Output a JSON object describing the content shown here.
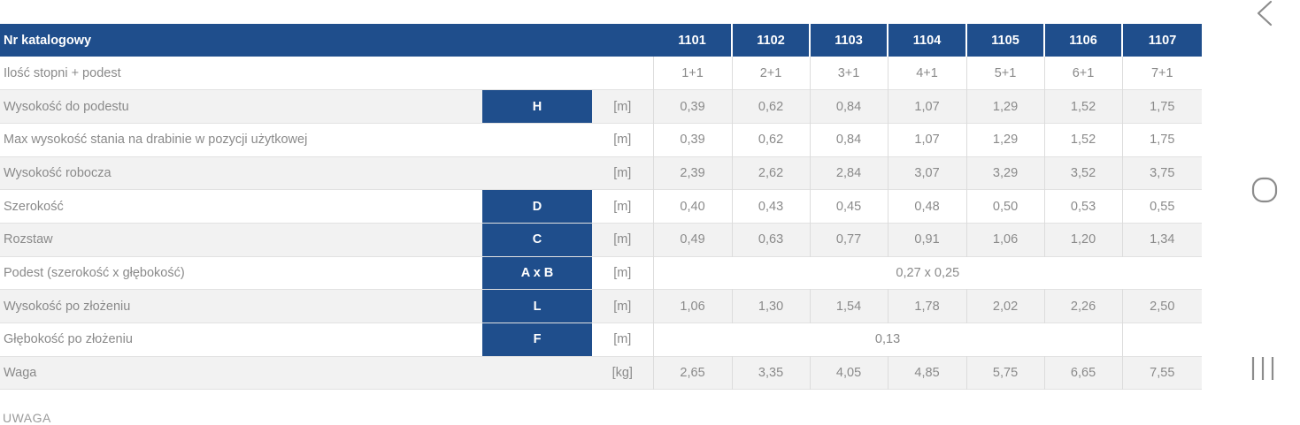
{
  "table": {
    "header": {
      "label": "Nr katalogowy",
      "models": [
        "1101",
        "1102",
        "1103",
        "1104",
        "1105",
        "1106",
        "1107"
      ]
    },
    "rows": [
      {
        "label": "Ilość stopni + podest",
        "symbol": "",
        "unit": "",
        "values": [
          "1+1",
          "2+1",
          "3+1",
          "4+1",
          "5+1",
          "6+1",
          "7+1"
        ]
      },
      {
        "label": "Wysokość do podestu",
        "symbol": "H",
        "unit": "[m]",
        "values": [
          "0,39",
          "0,62",
          "0,84",
          "1,07",
          "1,29",
          "1,52",
          "1,75"
        ]
      },
      {
        "label": "Max wysokość stania na drabinie w pozycji użytkowej",
        "symbol": "",
        "unit": "[m]",
        "values": [
          "0,39",
          "0,62",
          "0,84",
          "1,07",
          "1,29",
          "1,52",
          "1,75"
        ]
      },
      {
        "label": "Wysokość robocza",
        "symbol": "",
        "unit": "[m]",
        "values": [
          "2,39",
          "2,62",
          "2,84",
          "3,07",
          "3,29",
          "3,52",
          "3,75"
        ]
      },
      {
        "label": "Szerokość",
        "symbol": "D",
        "unit": "[m]",
        "values": [
          "0,40",
          "0,43",
          "0,45",
          "0,48",
          "0,50",
          "0,53",
          "0,55"
        ]
      },
      {
        "label": "Rozstaw",
        "symbol": "C",
        "unit": "[m]",
        "values": [
          "0,49",
          "0,63",
          "0,77",
          "0,91",
          "1,06",
          "1,20",
          "1,34"
        ]
      },
      {
        "label": "Podest (szerokość x głębokość)",
        "symbol": "A x B",
        "unit": "[m]",
        "span_value": "0,27 x 0,25"
      },
      {
        "label": "Wysokość po złożeniu",
        "symbol": "L",
        "unit": "[m]",
        "values": [
          "1,06",
          "1,30",
          "1,54",
          "1,78",
          "2,02",
          "2,26",
          "2,50"
        ]
      },
      {
        "label": "Głębokość po złożeniu",
        "symbol": "F",
        "unit": "[m]",
        "span_value": "0,13"
      },
      {
        "label": "Waga",
        "symbol": "",
        "unit": "[kg]",
        "values": [
          "2,65",
          "3,35",
          "4,05",
          "4,85",
          "5,75",
          "6,65",
          "7,55"
        ]
      }
    ]
  },
  "note": "UWAGA",
  "nav": {
    "back_icon": "chevron-left-icon",
    "home_icon": "circle-home-icon",
    "recents_icon": "recents-bars-icon"
  },
  "colors": {
    "header_blue": "#1f4e8c",
    "nav_gray": "#8c8c8c"
  }
}
